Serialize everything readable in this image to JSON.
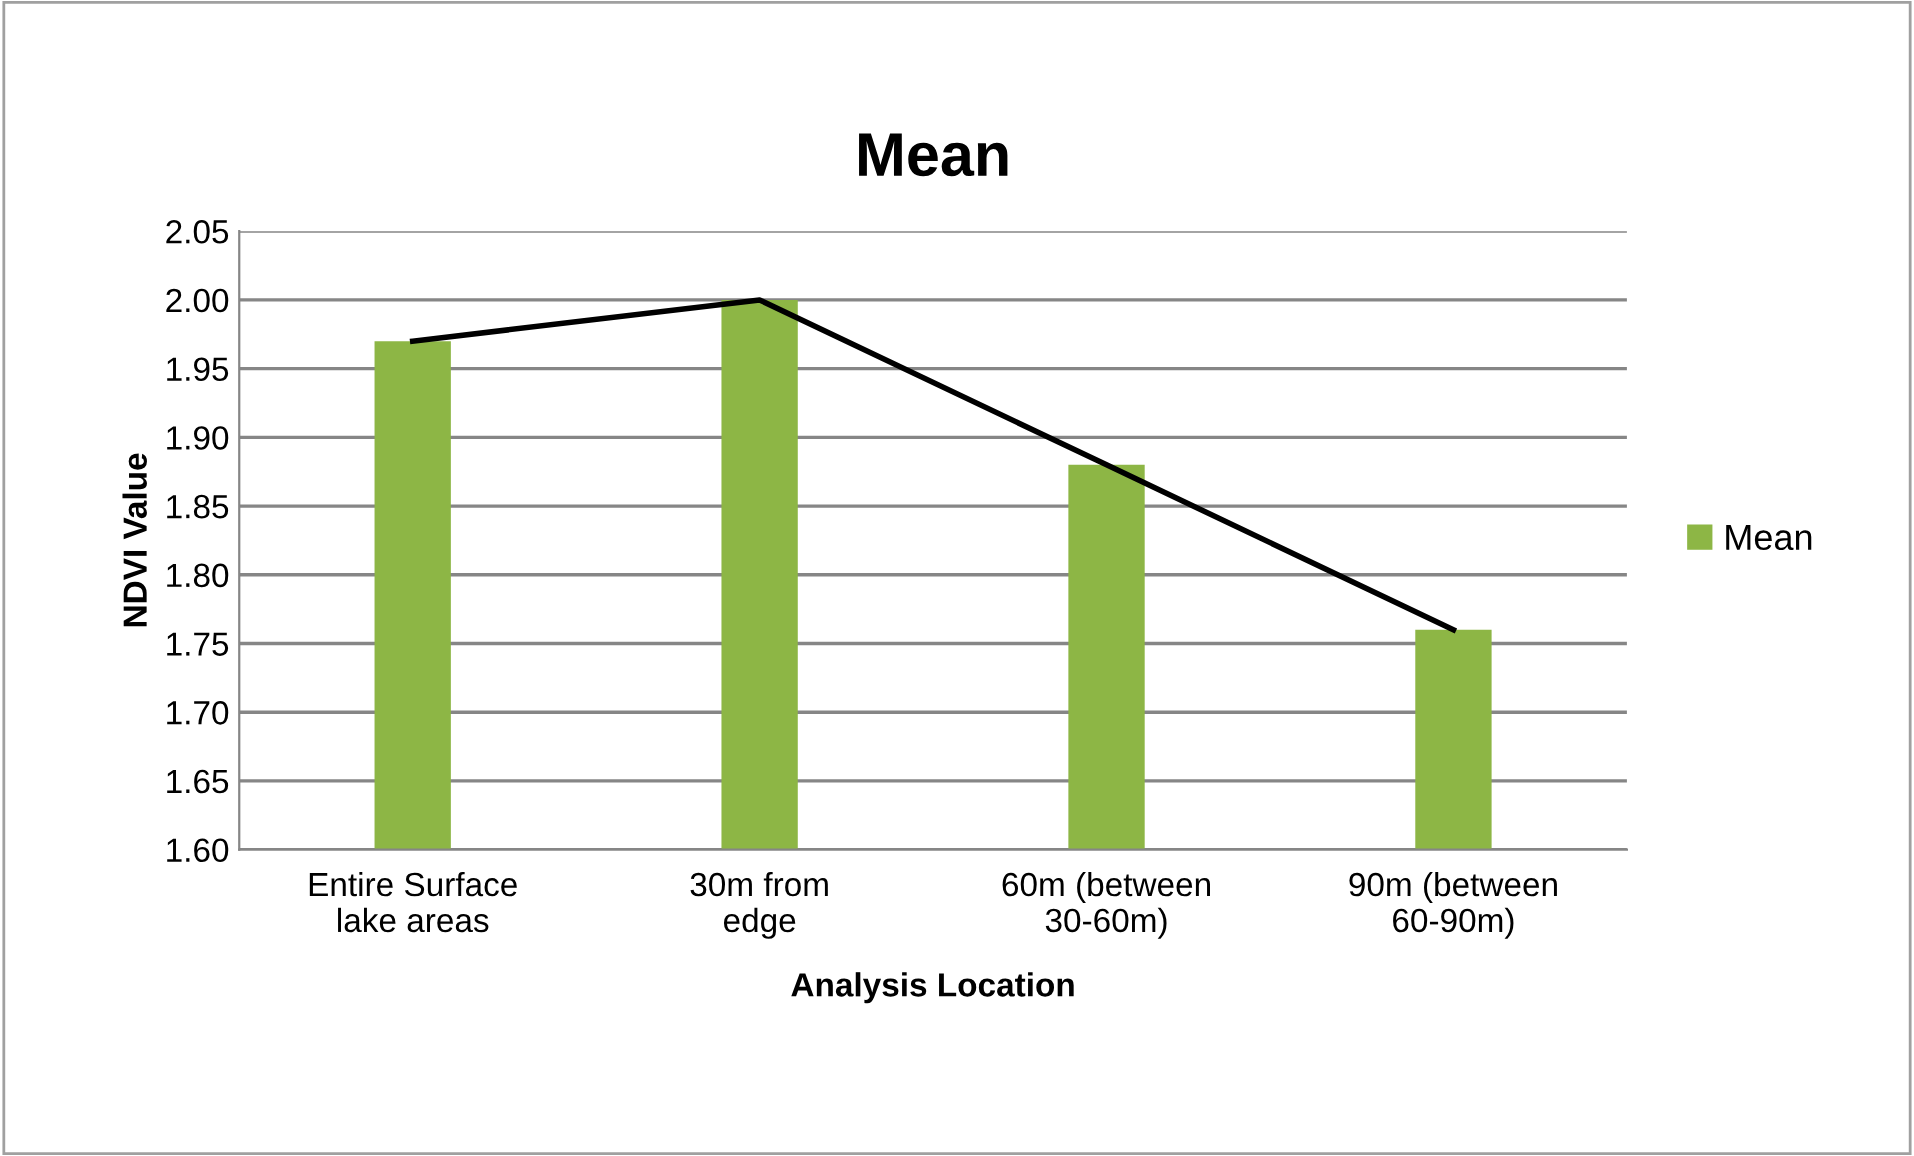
{
  "chart_data": {
    "type": "bar",
    "title": "Mean",
    "xlabel": "Analysis Location",
    "ylabel": "NDVI Value",
    "categories": [
      "Entire Surface\nlake areas",
      "30m from\nedge",
      "60m (between\n30-60m)",
      "90m (between\n60-90m)"
    ],
    "series": [
      {
        "name": "Mean",
        "color": "#8db645",
        "values": [
          1.97,
          2.0,
          1.88,
          1.76
        ]
      },
      {
        "type": "line",
        "color": "#000000",
        "values": [
          1.97,
          2.0,
          1.88,
          1.76
        ],
        "marker": "none",
        "line_style": "solid"
      }
    ],
    "ylim": [
      1.6,
      2.05
    ],
    "yticks": [
      {
        "value": 1.6,
        "label": "1.60"
      },
      1.65,
      {
        "value": 1.7,
        "label": "1.70"
      },
      1.75,
      {
        "value": 1.8,
        "label": "1.80"
      },
      1.85,
      {
        "value": 1.9,
        "label": "1.90"
      },
      1.95,
      {
        "value": 2.0,
        "label": "2.00"
      },
      2.05
    ],
    "grid": "y",
    "legend": "right"
  }
}
